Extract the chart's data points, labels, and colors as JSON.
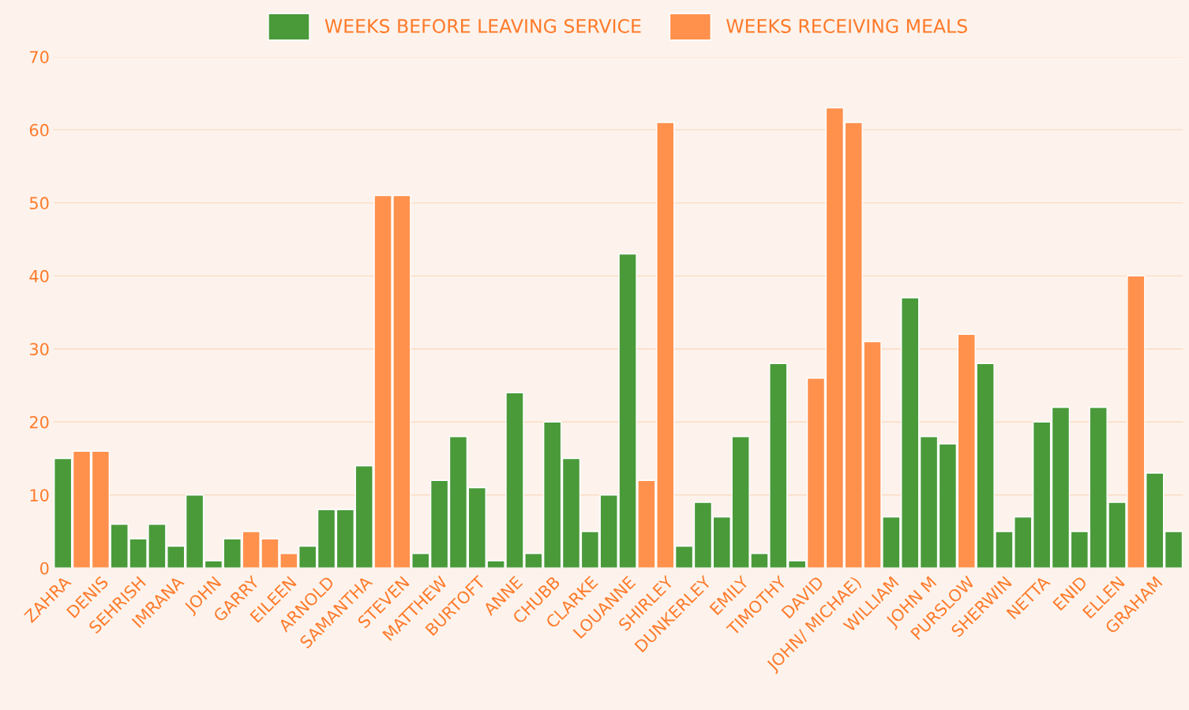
{
  "chart_data": {
    "type": "bar",
    "categories": [
      "ZAHRA",
      null,
      "DENIS",
      null,
      "SEHRISH",
      null,
      "IMRANA",
      null,
      "JOHN",
      null,
      "GARRY",
      null,
      "EILEEN",
      null,
      "ARNOLD",
      null,
      "SAMANTHA",
      null,
      "STEVEN",
      null,
      "MATTHEW",
      null,
      "BURTOFT",
      null,
      "ANNE",
      null,
      "CHUBB",
      null,
      "CLARKE",
      null,
      "LOUANNE",
      null,
      "SHIRLEY",
      null,
      "DUNKERLEY",
      null,
      "EMILY",
      null,
      "TIMOTHY",
      null,
      "DAVID",
      null,
      "JOHN/ MICHAE)",
      null,
      "WILLIAM",
      null,
      "JOHN M",
      null,
      "PURSLOW",
      null,
      "SHERWIN",
      null,
      "NETTA",
      null,
      "ENID",
      null,
      "ELLEN",
      null,
      "GRAHAM",
      null
    ],
    "series": [
      {
        "name": "WEEKS BEFORE LEAVING SERVICE",
        "color": "#4a9a3a",
        "values": [
          15,
          null,
          null,
          6,
          4,
          6,
          3,
          10,
          1,
          4,
          null,
          null,
          null,
          3,
          8,
          8,
          14,
          null,
          null,
          2,
          12,
          18,
          11,
          1,
          24,
          2,
          20,
          15,
          5,
          10,
          43,
          null,
          null,
          3,
          9,
          7,
          18,
          2,
          28,
          1,
          null,
          null,
          null,
          null,
          7,
          37,
          18,
          17,
          null,
          28,
          5,
          7,
          20,
          22,
          5,
          22,
          9,
          null,
          13,
          5
        ]
      },
      {
        "name": "WEEKS RECEIVING MEALS",
        "color": "#ff914d",
        "values": [
          null,
          16,
          16,
          null,
          null,
          null,
          null,
          null,
          null,
          null,
          5,
          4,
          2,
          null,
          null,
          null,
          null,
          51,
          51,
          null,
          null,
          null,
          null,
          null,
          null,
          null,
          null,
          null,
          null,
          null,
          null,
          12,
          61,
          null,
          null,
          null,
          null,
          null,
          null,
          null,
          26,
          63,
          61,
          31,
          null,
          null,
          null,
          null,
          32,
          null,
          null,
          null,
          null,
          null,
          null,
          null,
          null,
          40,
          null,
          null
        ]
      }
    ],
    "ylim": [
      0,
      70
    ],
    "yticks": [
      0,
      10,
      20,
      30,
      40,
      50,
      60,
      70
    ],
    "grid": "y",
    "legend": "top"
  }
}
